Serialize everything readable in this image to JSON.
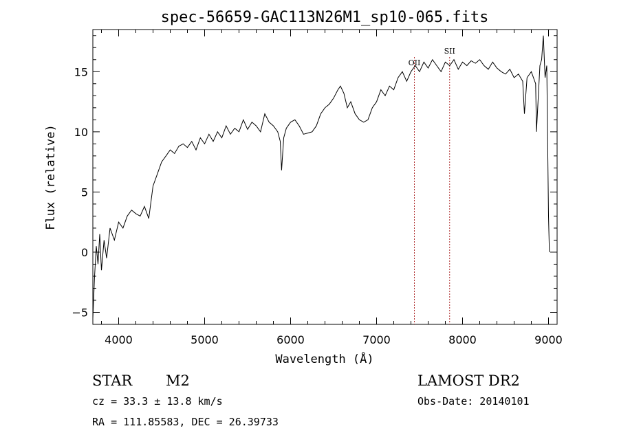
{
  "chart_data": {
    "type": "line",
    "title": "spec-56659-GAC113N26M1_sp10-065.fits",
    "xlabel": "Wavelength (Å)",
    "ylabel": "Flux (relative)",
    "xlim": [
      3700,
      9100
    ],
    "ylim": [
      -6,
      18.5
    ],
    "x_ticks": [
      4000,
      5000,
      6000,
      7000,
      8000,
      9000
    ],
    "y_ticks": [
      -5,
      0,
      5,
      10,
      15
    ],
    "grid": false,
    "legend": "none",
    "line_color": "#000000",
    "marker_color": "#b03030",
    "series": [
      {
        "x": [
          3700,
          3720,
          3740,
          3760,
          3780,
          3800,
          3830,
          3860,
          3900,
          3950,
          4000,
          4050,
          4100,
          4150,
          4200,
          4250,
          4300,
          4350,
          4400,
          4450,
          4500,
          4550,
          4600,
          4650,
          4700,
          4750,
          4800,
          4850,
          4900,
          4950,
          5000,
          5050,
          5100,
          5150,
          5200,
          5250,
          5300,
          5350,
          5400,
          5450,
          5500,
          5550,
          5600,
          5650,
          5700,
          5750,
          5800,
          5850,
          5880,
          5895,
          5920,
          5950,
          6000,
          6050,
          6100,
          6150,
          6200,
          6250,
          6300,
          6350,
          6400,
          6450,
          6500,
          6550,
          6580,
          6620,
          6660,
          6700,
          6750,
          6800,
          6850,
          6900,
          6950,
          7000,
          7050,
          7100,
          7150,
          7200,
          7250,
          7300,
          7350,
          7400,
          7450,
          7500,
          7550,
          7600,
          7650,
          7700,
          7750,
          7800,
          7850,
          7900,
          7950,
          8000,
          8050,
          8100,
          8150,
          8200,
          8250,
          8300,
          8350,
          8400,
          8450,
          8500,
          8550,
          8600,
          8650,
          8700,
          8720,
          8750,
          8800,
          8850,
          8860,
          8900,
          8920,
          8940,
          8960,
          8980,
          9000,
          9010
        ],
        "y": [
          -5.5,
          -2.0,
          0.5,
          -1.0,
          1.5,
          -1.5,
          1.0,
          -0.5,
          2.0,
          1.0,
          2.5,
          2.0,
          3.0,
          3.5,
          3.2,
          3.0,
          3.8,
          2.8,
          5.5,
          6.5,
          7.5,
          8.0,
          8.5,
          8.2,
          8.8,
          9.0,
          8.7,
          9.2,
          8.5,
          9.5,
          9.0,
          9.8,
          9.2,
          10.0,
          9.5,
          10.5,
          9.8,
          10.3,
          10.0,
          11.0,
          10.2,
          10.8,
          10.5,
          10.0,
          11.5,
          10.8,
          10.5,
          10.0,
          9.2,
          6.8,
          9.5,
          10.3,
          10.8,
          11.0,
          10.5,
          9.8,
          9.9,
          10.0,
          10.5,
          11.5,
          12.0,
          12.3,
          12.8,
          13.5,
          13.8,
          13.2,
          12.0,
          12.5,
          11.5,
          11.0,
          10.8,
          11.0,
          12.0,
          12.5,
          13.5,
          13.0,
          13.8,
          13.5,
          14.5,
          15.0,
          14.2,
          15.0,
          15.5,
          15.0,
          15.8,
          15.3,
          16.0,
          15.5,
          15.0,
          15.8,
          15.5,
          16.0,
          15.2,
          15.8,
          15.5,
          15.9,
          15.7,
          16.0,
          15.5,
          15.2,
          15.8,
          15.3,
          15.0,
          14.8,
          15.2,
          14.5,
          14.8,
          14.2,
          11.5,
          14.5,
          15.0,
          14.0,
          10.0,
          15.5,
          16.0,
          18.0,
          14.5,
          15.5,
          3.0,
          0.0
        ]
      }
    ],
    "line_markers": [
      {
        "label": "OII",
        "x": 7440
      },
      {
        "label": "SII",
        "x": 7850
      }
    ]
  },
  "footer": {
    "left_line1_a": "STAR",
    "left_line1_b": "M2",
    "left_line2": "cz = 33.3 ± 13.8 km/s",
    "left_line3": "RA = 111.85583, DEC =  26.39733",
    "right_line1": "LAMOST DR2",
    "right_line2": "Obs-Date: 20140101"
  }
}
